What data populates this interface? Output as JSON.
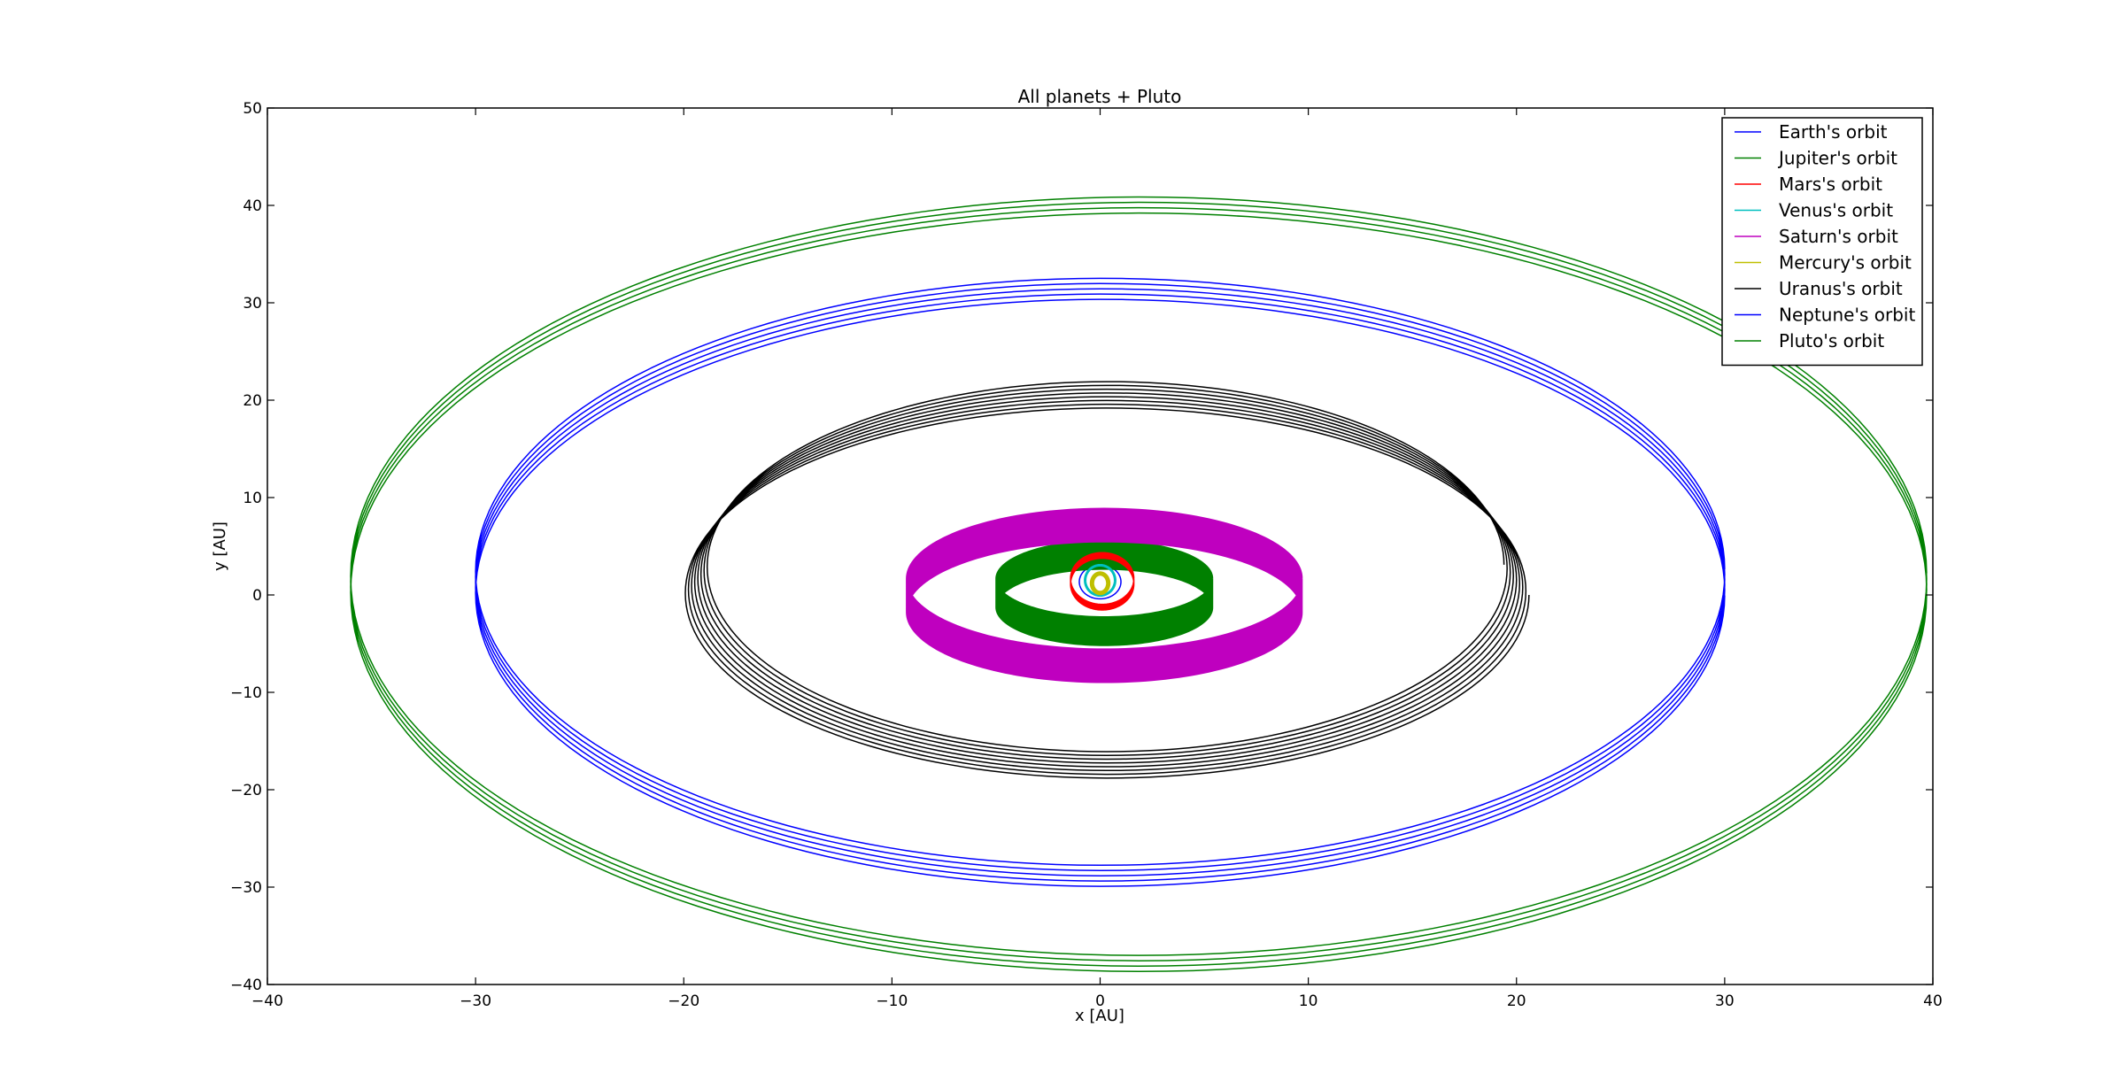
{
  "chart_data": {
    "type": "line",
    "title": "All planets + Pluto",
    "xlabel": "x [AU]",
    "ylabel": "y [AU]",
    "xlim": [
      -40,
      40
    ],
    "ylim": [
      -40,
      50
    ],
    "xticks": [
      -40,
      -30,
      -20,
      -10,
      0,
      10,
      20,
      30,
      40
    ],
    "yticks": [
      -40,
      -30,
      -20,
      -10,
      0,
      10,
      20,
      30,
      40,
      50
    ],
    "xtick_labels": [
      "−40",
      "−30",
      "−20",
      "−10",
      "0",
      "10",
      "20",
      "30",
      "40"
    ],
    "ytick_labels": [
      "−40",
      "−30",
      "−20",
      "−10",
      "0",
      "10",
      "20",
      "30",
      "40",
      "50"
    ],
    "grid": false,
    "legend_position": "top-right",
    "series": [
      {
        "name": "Earth's orbit",
        "color": "#0000ff",
        "center_x": 0.0,
        "center_y": 1.35,
        "a": 1.0,
        "b": 1.75,
        "turns": 10,
        "drift_y": 0.0,
        "drift_a": 0.0,
        "width": 1.5
      },
      {
        "name": "Jupiter's orbit",
        "color": "#008000",
        "center_x": 0.2,
        "center_y": 1.7,
        "a": 5.2,
        "b": 3.9,
        "turns": 45,
        "drift_y": -3.0,
        "drift_a": 0.0,
        "width": 1.5
      },
      {
        "name": "Mars's orbit",
        "color": "#ff0000",
        "center_x": 0.1,
        "center_y": 1.7,
        "a": 1.52,
        "b": 2.65,
        "turns": 30,
        "drift_y": -0.6,
        "drift_a": 0.0,
        "width": 1.5
      },
      {
        "name": "Venus's orbit",
        "color": "#00bfbf",
        "center_x": 0.0,
        "center_y": 1.5,
        "a": 0.72,
        "b": 1.55,
        "turns": 10,
        "drift_y": 0.0,
        "drift_a": 0.0,
        "width": 3.0
      },
      {
        "name": "Saturn's orbit",
        "color": "#bf00bf",
        "center_x": 0.2,
        "center_y": 1.7,
        "a": 9.5,
        "b": 7.2,
        "turns": 45,
        "drift_y": -3.5,
        "drift_a": 0.0,
        "width": 1.5
      },
      {
        "name": "Mercury's orbit",
        "color": "#bfbf00",
        "center_x": 0.0,
        "center_y": 1.2,
        "a": 0.39,
        "b": 1.0,
        "turns": 12,
        "drift_y": 0.0,
        "drift_a": 0.0,
        "width": 5.0
      },
      {
        "name": "Uranus's orbit",
        "color": "#000000",
        "center_x": 0.3,
        "center_y": 3.1,
        "a": 19.1,
        "b": 18.9,
        "turns": 8,
        "drift_y": -3.1,
        "drift_a": 0.15,
        "width": 1.5
      },
      {
        "name": "Neptune's orbit",
        "color": "#0000ff",
        "center_x": 0.0,
        "center_y": 2.65,
        "a": 30.0,
        "b": 30.0,
        "turns": 5,
        "drift_y": -2.7,
        "drift_a": 0.0,
        "width": 1.5
      },
      {
        "name": "Pluto's orbit",
        "color": "#008000",
        "center_x": 1.85,
        "center_y": 2.2,
        "a": 37.85,
        "b": 38.8,
        "turns": 4,
        "drift_y": -2.2,
        "drift_a": 0.0,
        "width": 1.5
      }
    ]
  }
}
